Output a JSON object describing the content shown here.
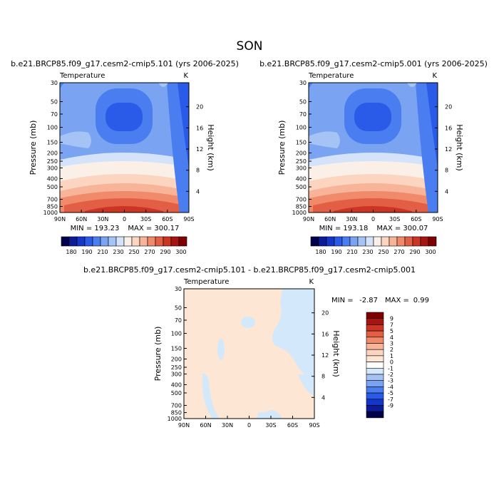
{
  "season": "SON",
  "colors": {
    "abs_scale": [
      "#00004b",
      "#0a1c9a",
      "#1536c8",
      "#2a5ae8",
      "#4a7ef0",
      "#7aa3f2",
      "#a5c3f5",
      "#d4e3fa",
      "#fbf0e8",
      "#fcd5c0",
      "#f7b498",
      "#f08a6a",
      "#e25e44",
      "#cc3524",
      "#a8140f",
      "#7e0000"
    ],
    "diff_scale": [
      "#00004b",
      "#0a1c9a",
      "#1536c8",
      "#2a5ae8",
      "#4a7ef0",
      "#7aa3f2",
      "#a5c3f5",
      "#d4e8fc",
      "#ffffff",
      "#fde6d4",
      "#fcd5c0",
      "#f7b498",
      "#f08a6a",
      "#e25e44",
      "#cc3524",
      "#a8140f",
      "#7e0000"
    ]
  },
  "chart_data": [
    {
      "type": "heatmap",
      "title": "b.e21.BRCP85.f09_g17.cesm2-cmip5.101 (yrs 2006-2025)",
      "left_label": "Temperature",
      "right_label": "K",
      "ylabel": "Pressure (mb)",
      "y2label": "Height (km)",
      "x_ticks": [
        "90N",
        "60N",
        "30N",
        "0",
        "30S",
        "60S",
        "90S"
      ],
      "y_ticks": [
        "30",
        "50",
        "70",
        "100",
        "150",
        "200",
        "250",
        "300",
        "400",
        "500",
        "700",
        "850",
        "1000"
      ],
      "y2_ticks": [
        "20",
        "16",
        "12",
        "8",
        "4"
      ],
      "min_text": "MIN = 193.23",
      "max_text": "MAX = 300.17",
      "colorbar_labels": [
        "180",
        "190",
        "210",
        "230",
        "250",
        "270",
        "290",
        "300"
      ]
    },
    {
      "type": "heatmap",
      "title": "b.e21.BRCP85.f09_g17.cesm2-cmip5.001 (yrs 2006-2025)",
      "left_label": "Temperature",
      "right_label": "K",
      "ylabel": "Pressure (mb)",
      "y2label": "Height (km)",
      "x_ticks": [
        "90N",
        "60N",
        "30N",
        "0",
        "30S",
        "60S",
        "90S"
      ],
      "y_ticks": [
        "30",
        "50",
        "70",
        "100",
        "150",
        "200",
        "250",
        "300",
        "400",
        "500",
        "700",
        "850",
        "1000"
      ],
      "y2_ticks": [
        "20",
        "16",
        "12",
        "8",
        "4"
      ],
      "min_text": "MIN = 193.18",
      "max_text": "MAX = 300.07",
      "colorbar_labels": [
        "180",
        "190",
        "210",
        "230",
        "250",
        "270",
        "290",
        "300"
      ]
    },
    {
      "type": "heatmap",
      "title": "b.e21.BRCP85.f09_g17.cesm2-cmip5.101 - b.e21.BRCP85.f09_g17.cesm2-cmip5.001",
      "left_label": "Temperature",
      "right_label": "K",
      "ylabel": "Pressure (mb)",
      "y2label": "Height (km)",
      "x_ticks": [
        "90N",
        "60N",
        "30N",
        "0",
        "30S",
        "60S",
        "90S"
      ],
      "y_ticks": [
        "30",
        "50",
        "70",
        "100",
        "150",
        "200",
        "250",
        "300",
        "400",
        "500",
        "700",
        "850",
        "1000"
      ],
      "y2_ticks": [
        "20",
        "16",
        "12",
        "8",
        "4"
      ],
      "min_label": "MIN =",
      "min_value": "-2.87",
      "max_label": "MAX =",
      "max_value": "0.99",
      "colorbar_labels": [
        "9",
        "7",
        "5",
        "4",
        "3",
        "2",
        "1",
        "0",
        "-1",
        "-2",
        "-3",
        "-4",
        "-5",
        "-7",
        "-9"
      ]
    }
  ]
}
